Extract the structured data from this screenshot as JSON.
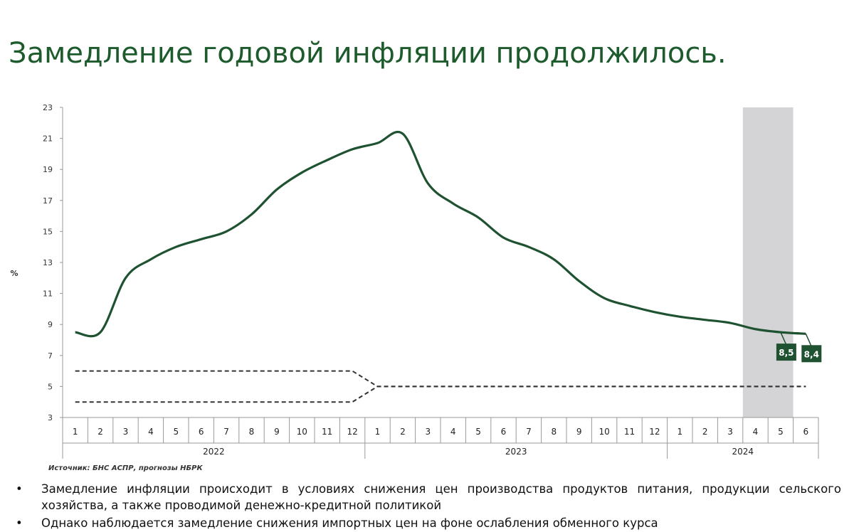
{
  "chart_data": {
    "type": "line",
    "title": "Замедление годовой инфляции продолжилось.",
    "y_label": "%",
    "source": "Источник: БНС АСПР, прогнозы НБРК",
    "categories": [
      "1",
      "2",
      "3",
      "4",
      "5",
      "6",
      "7",
      "8",
      "9",
      "10",
      "11",
      "12",
      "1",
      "2",
      "3",
      "4",
      "5",
      "6",
      "7",
      "8",
      "9",
      "10",
      "11",
      "12",
      "1",
      "2",
      "3",
      "4",
      "5",
      "6"
    ],
    "x_groups": [
      "2022",
      "2023",
      "2024"
    ],
    "ylim": [
      3,
      23
    ],
    "yticks": [
      3,
      5,
      7,
      9,
      11,
      13,
      15,
      17,
      19,
      21,
      23
    ],
    "series": [
      {
        "color": "#1e5231",
        "values": [
          8.5,
          8.5,
          12.0,
          13.2,
          14.0,
          14.5,
          15.0,
          16.1,
          17.7,
          18.8,
          19.6,
          20.3,
          20.7,
          21.3,
          18.1,
          16.8,
          15.9,
          14.6,
          14.0,
          13.2,
          11.8,
          10.7,
          10.2,
          9.8,
          9.5,
          9.3,
          9.1,
          8.7,
          8.5,
          8.4
        ],
        "value_labels": [
          null,
          null,
          null,
          null,
          null,
          null,
          null,
          null,
          null,
          null,
          null,
          null,
          null,
          null,
          null,
          null,
          null,
          null,
          null,
          null,
          null,
          null,
          null,
          null,
          null,
          null,
          null,
          null,
          "8,5",
          "8,4"
        ]
      },
      {
        "color": "#333333",
        "dashed": true,
        "values": [
          6,
          6,
          6,
          6,
          6,
          6,
          6,
          6,
          6,
          6,
          6,
          6,
          5,
          5,
          5,
          5,
          5,
          5,
          5,
          5,
          5,
          5,
          5,
          5,
          5,
          5,
          5,
          5,
          5,
          5
        ]
      },
      {
        "color": "#333333",
        "dashed": true,
        "values": [
          4,
          4,
          4,
          4,
          4,
          4,
          4,
          4,
          4,
          4,
          4,
          4,
          5,
          5,
          5,
          5,
          5,
          5,
          5,
          5,
          5,
          5,
          5,
          5,
          5,
          5,
          5,
          5,
          5,
          5
        ]
      }
    ]
  },
  "bullets": [
    "Замедление инфляции происходит в условиях снижения цен производства продуктов питания, продукции сельского хозяйства, а также проводимой денежно-кредитной политикой",
    "Однако наблюдается замедление снижения импортных цен на фоне ослабления обменного курса"
  ]
}
